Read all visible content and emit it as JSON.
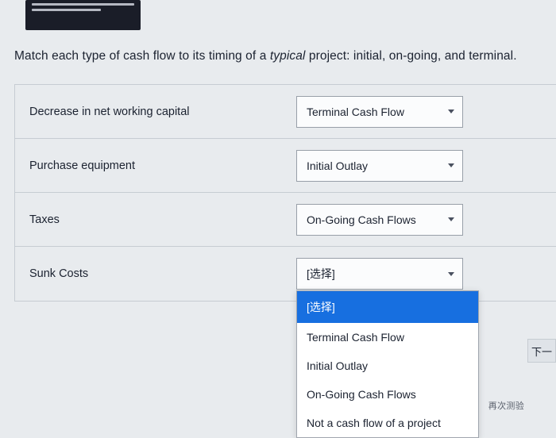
{
  "question": {
    "prefix": "Match each type of cash flow to its timing of a ",
    "em": "typical",
    "suffix": " project: initial, on-going, and terminal."
  },
  "rows": [
    {
      "label": "Decrease in net working capital",
      "value": "Terminal Cash Flow"
    },
    {
      "label": "Purchase equipment",
      "value": "Initial Outlay"
    },
    {
      "label": "Taxes",
      "value": "On-Going Cash Flows"
    },
    {
      "label": "Sunk Costs",
      "value": "[选择]"
    }
  ],
  "dropdown": {
    "options": [
      "[选择]",
      "Terminal Cash Flow",
      "Initial Outlay",
      "On-Going Cash Flows",
      "Not a cash flow of a project"
    ],
    "highlightIndex": 0
  },
  "nextLabel": "下一",
  "footerHint": "再次测验"
}
